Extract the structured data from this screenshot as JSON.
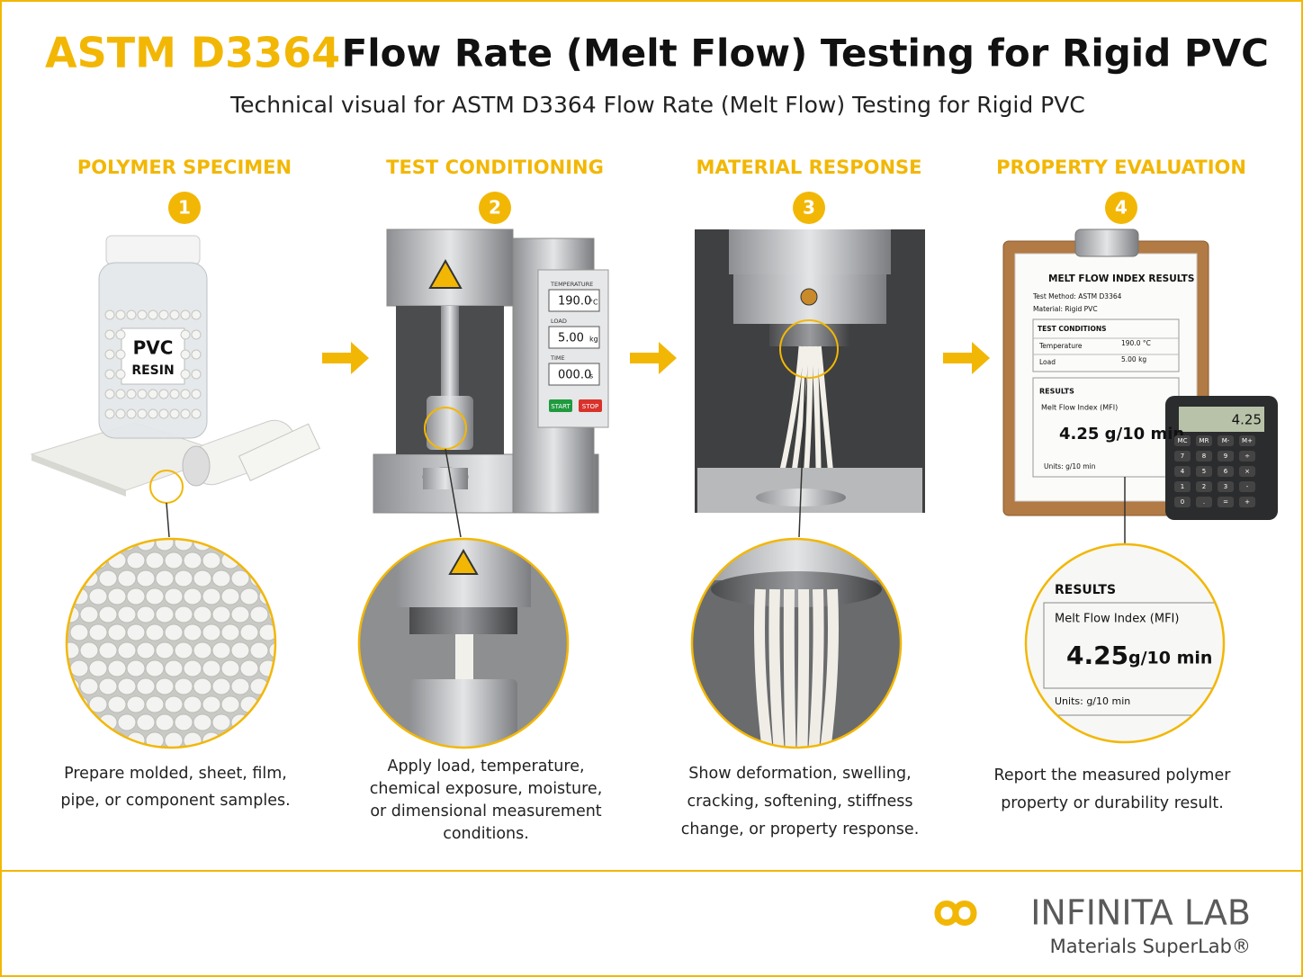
{
  "header": {
    "title_highlight": "ASTM D3364",
    "title": "Flow Rate (Melt Flow) Testing for Rigid PVC",
    "subtitle": "Technical visual for ASTM D3364 Flow Rate (Melt Flow) Testing for Rigid PVC"
  },
  "steps": [
    {
      "heading": "POLYMER SPECIMEN",
      "number": "1",
      "caption": [
        "Prepare molded, sheet, film,",
        "pipe, or component samples."
      ],
      "label": [
        "PVC",
        "RESIN"
      ]
    },
    {
      "heading": "TEST CONDITIONING",
      "number": "2",
      "caption": [
        "Apply load, temperature,",
        "chemical exposure, moisture,",
        "or dimensional measurement",
        "conditions."
      ],
      "panel": [
        {
          "label": "TEMPERATURE",
          "value": "190.0",
          "unit": "°C"
        },
        {
          "label": "LOAD",
          "value": "5.00",
          "unit": "kg"
        },
        {
          "label": "TIME",
          "value": "000.0",
          "unit": "s"
        }
      ],
      "buttons": [
        "START",
        "STOP"
      ]
    },
    {
      "heading": "MATERIAL RESPONSE",
      "number": "3",
      "caption": [
        "Show deformation, swelling,",
        "cracking, softening, stiffness",
        "change, or property response."
      ]
    },
    {
      "heading": "PROPERTY EVALUATION",
      "number": "4",
      "caption": [
        "Report the measured polymer",
        "property or durability result."
      ],
      "sheet": {
        "title": "MELT FLOW INDEX RESULTS",
        "method": "Test Method: ASTM D3364",
        "material": "Material: Rigid PVC",
        "conditions_title": "TEST CONDITIONS",
        "conditions": [
          [
            "Temperature",
            "190.0 °C"
          ],
          [
            "Load",
            "5.00 kg"
          ]
        ],
        "results_title": "RESULTS",
        "mfi_label": "Melt Flow Index (MFI)",
        "mfi_value": "4.25 g/10 min",
        "units": "Units: g/10 min"
      },
      "calculator": {
        "display": "4.25",
        "keys": [
          "MC",
          "MR",
          "M-",
          "M+",
          "7",
          "8",
          "9",
          "÷",
          "4",
          "5",
          "6",
          "×",
          "1",
          "2",
          "3",
          "-",
          "0",
          ".",
          "=",
          "+"
        ]
      },
      "zoom": {
        "results_title": "RESULTS",
        "mfi_label": "Melt Flow Index (MFI)",
        "mfi_number": "4.25",
        "mfi_unit": "g/10 min",
        "units": "Units: g/10 min"
      }
    }
  ],
  "footer": {
    "logo": "INFINITA LAB",
    "tagline": "Materials SuperLab®"
  }
}
